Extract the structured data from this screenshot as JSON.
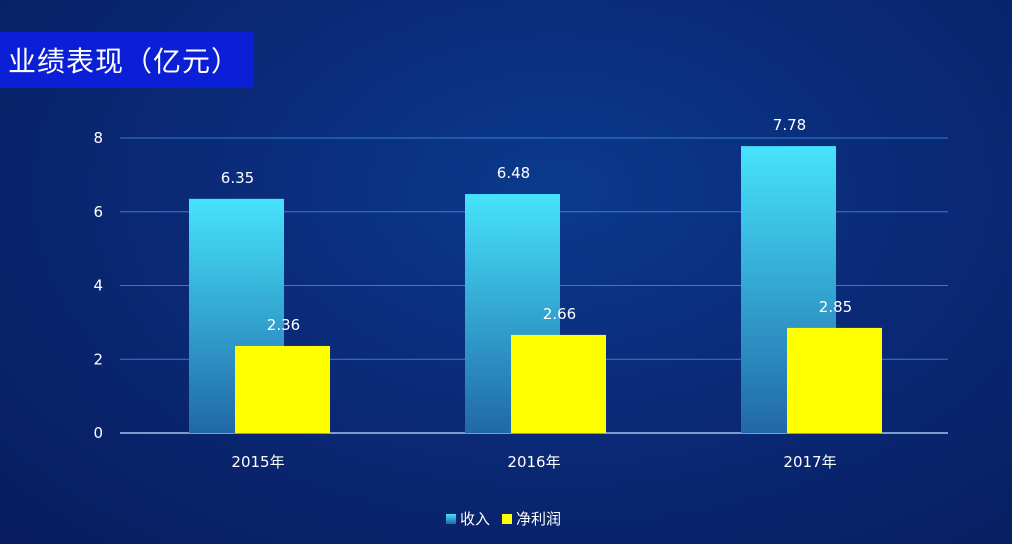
{
  "title": "业绩表现（亿元）",
  "colors": {
    "revenue_top": "#46e3fb",
    "revenue_bottom": "#2168a8",
    "profit": "#ffff00",
    "gridline": "#2f7fd0",
    "axis": "#9fc4ec"
  },
  "chart_data": {
    "type": "bar",
    "categories": [
      "2015年",
      "2016年",
      "2017年"
    ],
    "series": [
      {
        "name": "收入",
        "values": [
          6.35,
          6.48,
          7.78
        ],
        "labels": [
          "6.35",
          "6.48",
          "7.78"
        ]
      },
      {
        "name": "净利润",
        "values": [
          2.36,
          2.66,
          2.85
        ],
        "labels": [
          "2.36",
          "2.66",
          "2.85"
        ]
      }
    ],
    "ylim": [
      0,
      8
    ],
    "yticks": [
      "0",
      "2",
      "4",
      "6",
      "8"
    ],
    "grid": true,
    "legend_position": "bottom-center"
  }
}
